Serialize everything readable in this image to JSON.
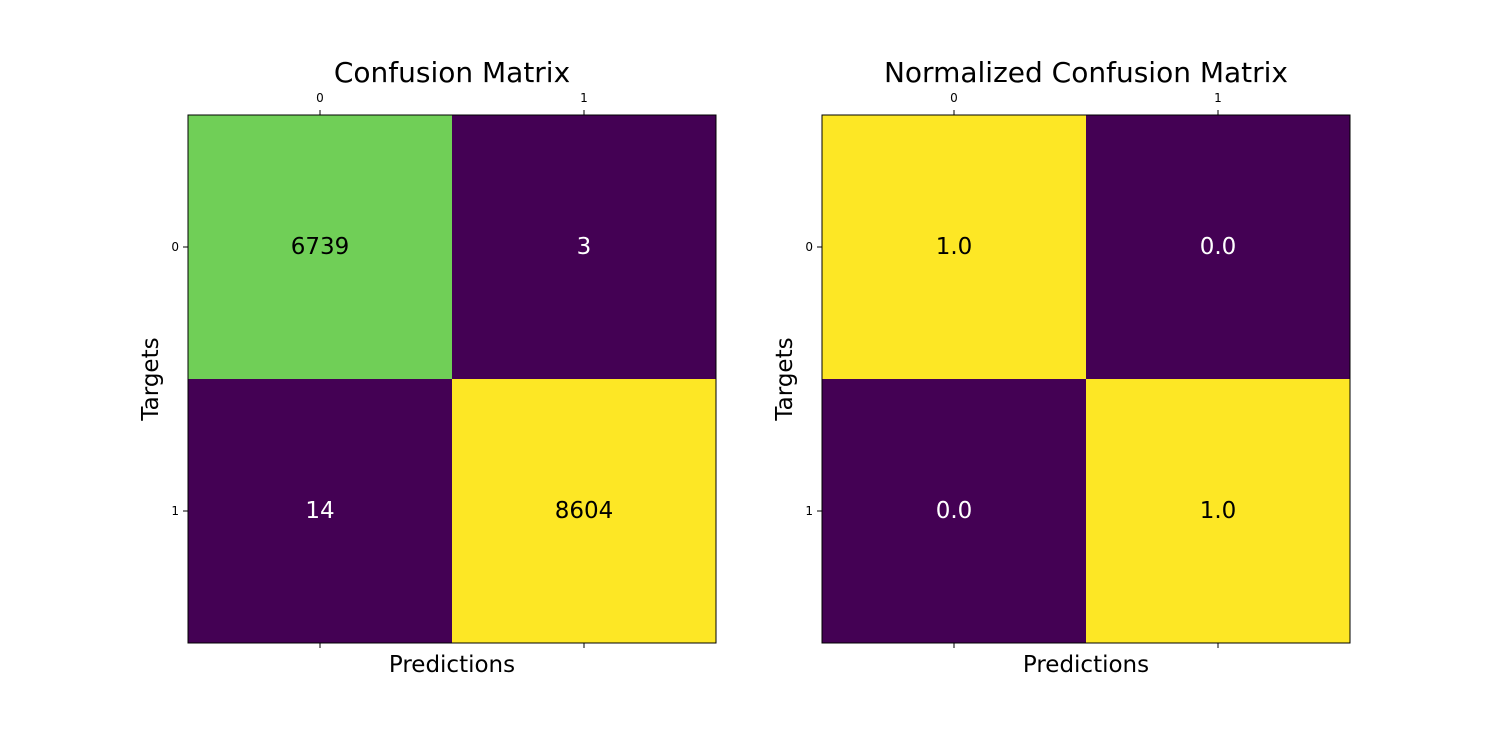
{
  "chart_data": [
    {
      "type": "heatmap",
      "title": "Confusion Matrix",
      "xlabel": "Predictions",
      "ylabel": "Targets",
      "x_ticks": [
        "0",
        "1"
      ],
      "y_ticks": [
        "0",
        "1"
      ],
      "values": [
        [
          6739,
          3
        ],
        [
          14,
          8604
        ]
      ],
      "cell_labels": [
        [
          "6739",
          "3"
        ],
        [
          "14",
          "8604"
        ]
      ],
      "colormap": "viridis",
      "color_range": [
        0,
        8604
      ],
      "cell_colors": [
        [
          "#70cf57",
          "#440154"
        ],
        [
          "#440154",
          "#fde725"
        ]
      ],
      "cell_text_colors": [
        [
          "#000000",
          "#ffffff"
        ],
        [
          "#ffffff",
          "#000000"
        ]
      ],
      "x_tick_position": "top",
      "grid": false
    },
    {
      "type": "heatmap",
      "title": "Normalized Confusion Matrix",
      "xlabel": "Predictions",
      "ylabel": "Targets",
      "x_ticks": [
        "0",
        "1"
      ],
      "y_ticks": [
        "0",
        "1"
      ],
      "values": [
        [
          1.0,
          0.0
        ],
        [
          0.0,
          1.0
        ]
      ],
      "cell_labels": [
        [
          "1.0",
          "0.0"
        ],
        [
          "0.0",
          "1.0"
        ]
      ],
      "colormap": "viridis",
      "color_range": [
        0,
        1
      ],
      "cell_colors": [
        [
          "#fde725",
          "#440154"
        ],
        [
          "#440154",
          "#fde725"
        ]
      ],
      "cell_text_colors": [
        [
          "#000000",
          "#ffffff"
        ],
        [
          "#ffffff",
          "#000000"
        ]
      ],
      "x_tick_position": "top",
      "grid": false
    }
  ]
}
